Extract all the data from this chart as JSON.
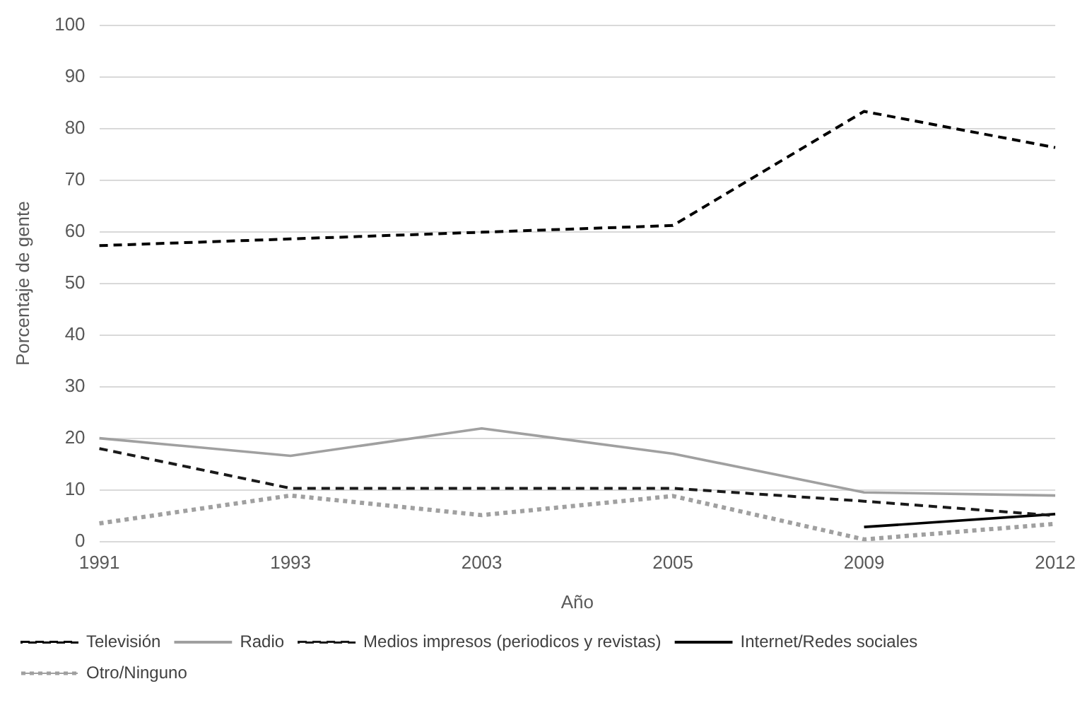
{
  "chart_data": {
    "type": "line",
    "xlabel": "Año",
    "ylabel": "Porcentaje de gente",
    "categories": [
      "1991",
      "1993",
      "2003",
      "2005",
      "2009",
      "2012"
    ],
    "series": [
      {
        "name": "Televisión",
        "color": "#000000",
        "line_style": "dashed",
        "values": [
          57.3,
          58.6,
          59.9,
          61.2,
          83.3,
          76.3
        ]
      },
      {
        "name": "Radio",
        "color": "#a0a0a0",
        "line_style": "solid",
        "values": [
          20,
          16.6,
          21.9,
          17,
          9.5,
          8.9
        ]
      },
      {
        "name": "Medios impresos (periodicos y revistas)",
        "color": "#1a1a1a",
        "line_style": "dashed",
        "values": [
          18,
          10.3,
          10.3,
          10.3,
          7.8,
          5
        ]
      },
      {
        "name": "Internet/Redes sociales",
        "color": "#000000",
        "line_style": "solid",
        "values": [
          null,
          null,
          null,
          null,
          2.8,
          5.3
        ]
      },
      {
        "name": "Otro/Ninguno",
        "color": "#a0a0a0",
        "line_style": "dotted",
        "values": [
          3.5,
          8.9,
          5.1,
          8.8,
          0.4,
          3.4
        ]
      }
    ],
    "ylim": [
      0,
      100
    ],
    "yticks": [
      0,
      10,
      20,
      30,
      40,
      50,
      60,
      70,
      80,
      90,
      100
    ],
    "grid": "y",
    "legend": "bottom",
    "marker": "none"
  }
}
